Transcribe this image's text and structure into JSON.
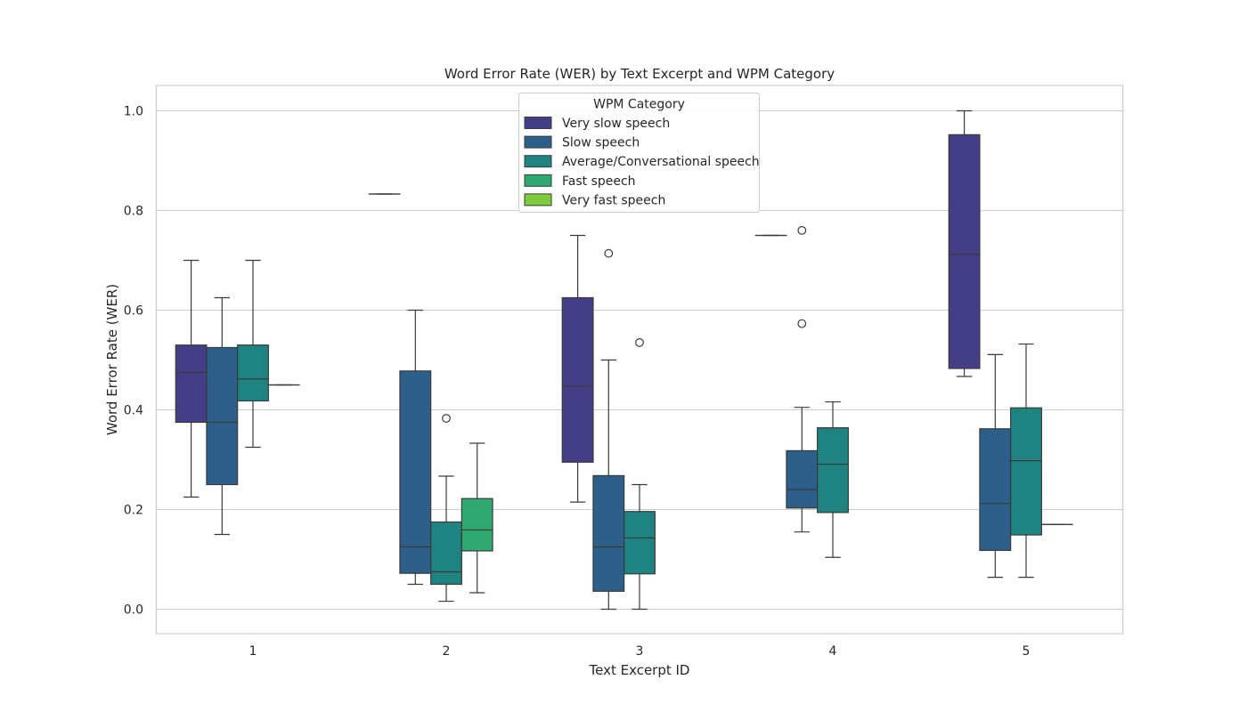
{
  "chart_data": {
    "type": "boxplot",
    "title": "Word Error Rate (WER) by Text Excerpt and WPM Category",
    "xlabel": "Text Excerpt ID",
    "ylabel": "Word Error Rate (WER)",
    "categories": [
      "1",
      "2",
      "3",
      "4",
      "5"
    ],
    "ylim": [
      -0.047,
      1.05
    ],
    "yticks": [
      "0.0",
      "0.2",
      "0.4",
      "0.6",
      "0.8",
      "1.0"
    ],
    "yticks_values": [
      0.0,
      0.2,
      0.4,
      0.6,
      0.8,
      1.0
    ],
    "grid": true,
    "legend": {
      "title": "WPM Category",
      "placement": "upper-center"
    },
    "series": [
      {
        "name": "Very slow speech",
        "color": "#433e85",
        "boxes": [
          {
            "category": "1",
            "whislo": 0.225,
            "q1": 0.375,
            "med": 0.475,
            "q3": 0.53,
            "whishi": 0.7,
            "fliers": []
          },
          {
            "category": "2",
            "whislo": 0.833,
            "q1": 0.833,
            "med": 0.833,
            "q3": 0.833,
            "whishi": 0.833,
            "fliers": []
          },
          {
            "category": "3",
            "whislo": 0.215,
            "q1": 0.295,
            "med": 0.447,
            "q3": 0.625,
            "whishi": 0.75,
            "fliers": []
          },
          {
            "category": "4",
            "whislo": 0.75,
            "q1": 0.75,
            "med": 0.75,
            "q3": 0.75,
            "whishi": 0.75,
            "fliers": []
          },
          {
            "category": "5",
            "whislo": 0.467,
            "q1": 0.483,
            "med": 0.712,
            "q3": 0.952,
            "whishi": 1.0,
            "fliers": []
          }
        ]
      },
      {
        "name": "Slow speech",
        "color": "#2c5f8a",
        "boxes": [
          {
            "category": "1",
            "whislo": 0.15,
            "q1": 0.25,
            "med": 0.375,
            "q3": 0.525,
            "whishi": 0.625,
            "fliers": []
          },
          {
            "category": "2",
            "whislo": 0.05,
            "q1": 0.072,
            "med": 0.125,
            "q3": 0.478,
            "whishi": 0.6,
            "fliers": []
          },
          {
            "category": "3",
            "whislo": 0.0,
            "q1": 0.036,
            "med": 0.125,
            "q3": 0.268,
            "whishi": 0.5,
            "fliers": [
              0.714
            ]
          },
          {
            "category": "4",
            "whislo": 0.155,
            "q1": 0.203,
            "med": 0.24,
            "q3": 0.318,
            "whishi": 0.405,
            "fliers": [
              0.573,
              0.76
            ]
          },
          {
            "category": "5",
            "whislo": 0.064,
            "q1": 0.118,
            "med": 0.212,
            "q3": 0.362,
            "whishi": 0.511,
            "fliers": []
          }
        ]
      },
      {
        "name": "Average/Conversational speech",
        "color": "#1f8382",
        "boxes": [
          {
            "category": "1",
            "whislo": 0.325,
            "q1": 0.418,
            "med": 0.462,
            "q3": 0.53,
            "whishi": 0.7,
            "fliers": []
          },
          {
            "category": "2",
            "whislo": 0.016,
            "q1": 0.05,
            "med": 0.075,
            "q3": 0.175,
            "whishi": 0.267,
            "fliers": [
              0.383
            ]
          },
          {
            "category": "3",
            "whislo": 0.0,
            "q1": 0.071,
            "med": 0.143,
            "q3": 0.196,
            "whishi": 0.25,
            "fliers": [
              0.535
            ]
          },
          {
            "category": "4",
            "whislo": 0.104,
            "q1": 0.194,
            "med": 0.291,
            "q3": 0.364,
            "whishi": 0.416,
            "fliers": []
          },
          {
            "category": "5",
            "whislo": 0.064,
            "q1": 0.149,
            "med": 0.298,
            "q3": 0.404,
            "whishi": 0.532,
            "fliers": []
          }
        ]
      },
      {
        "name": "Fast speech",
        "color": "#2eaa71",
        "boxes": [
          {
            "category": "1",
            "whislo": 0.45,
            "q1": 0.45,
            "med": 0.45,
            "q3": 0.45,
            "whishi": 0.45,
            "fliers": []
          },
          {
            "category": "2",
            "whislo": 0.033,
            "q1": 0.117,
            "med": 0.159,
            "q3": 0.222,
            "whishi": 0.333,
            "fliers": []
          },
          {
            "category": "5",
            "whislo": 0.17,
            "q1": 0.17,
            "med": 0.17,
            "q3": 0.17,
            "whishi": 0.17,
            "fliers": []
          }
        ]
      },
      {
        "name": "Very fast speech",
        "color": "#7dcd3e",
        "boxes": []
      }
    ]
  }
}
